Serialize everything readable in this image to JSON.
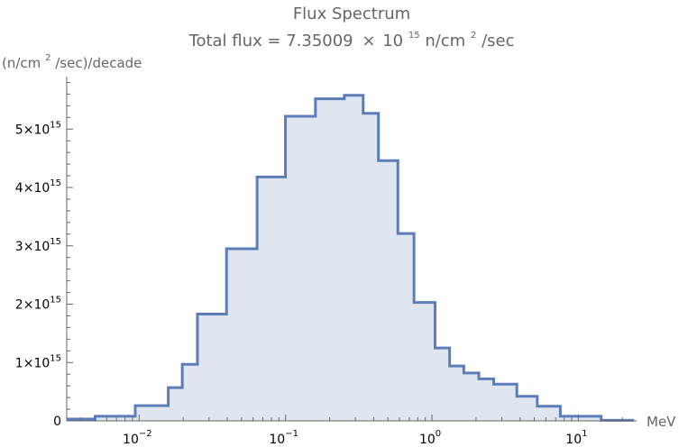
{
  "chart_data": {
    "type": "area",
    "title": "Flux Spectrum",
    "subtitle": {
      "prefix": "Total flux = 7.35009",
      "times": "×",
      "base": "10",
      "exponent": "15",
      "unit_prefix": " n/cm",
      "unit_exp": "2",
      "unit_suffix": "/sec"
    },
    "ylabel": {
      "prefix": "(n/cm",
      "exp": "2",
      "suffix": "/sec)/decade"
    },
    "xlabel": "MeV",
    "x_scale": "log",
    "xlim": [
      0.0032,
      25
    ],
    "ylim": [
      0,
      5900000000000000.0
    ],
    "x_ticks": [
      {
        "base": "10",
        "exp": "−2",
        "value": 0.01
      },
      {
        "base": "10",
        "exp": "−1",
        "value": 0.1
      },
      {
        "base": "10",
        "exp": "0",
        "value": 1
      },
      {
        "base": "10",
        "exp": "1",
        "value": 10
      }
    ],
    "y_ticks": [
      {
        "label": "0",
        "value": 0
      },
      {
        "mant": "1",
        "times": "×",
        "base": "10",
        "exp": "15",
        "value": 1000000000000000.0
      },
      {
        "mant": "2",
        "times": "×",
        "base": "10",
        "exp": "15",
        "value": 2000000000000000.0
      },
      {
        "mant": "3",
        "times": "×",
        "base": "10",
        "exp": "15",
        "value": 3000000000000000.0
      },
      {
        "mant": "4",
        "times": "×",
        "base": "10",
        "exp": "15",
        "value": 4000000000000000.0
      },
      {
        "mant": "5",
        "times": "×",
        "base": "10",
        "exp": "15",
        "value": 5000000000000000.0
      }
    ],
    "bins": [
      {
        "lo": 0.0032,
        "hi": 0.005,
        "value": 30000000000000.0
      },
      {
        "lo": 0.005,
        "hi": 0.0094,
        "value": 80000000000000.0
      },
      {
        "lo": 0.0094,
        "hi": 0.0158,
        "value": 260000000000000.0
      },
      {
        "lo": 0.0158,
        "hi": 0.0197,
        "value": 570000000000000.0
      },
      {
        "lo": 0.0197,
        "hi": 0.025,
        "value": 970000000000000.0
      },
      {
        "lo": 0.025,
        "hi": 0.0395,
        "value": 1830000000000000.0
      },
      {
        "lo": 0.0395,
        "hi": 0.0639,
        "value": 2950000000000000.0
      },
      {
        "lo": 0.0639,
        "hi": 0.0998,
        "value": 4180000000000000.0
      },
      {
        "lo": 0.0998,
        "hi": 0.16,
        "value": 5220000000000000.0
      },
      {
        "lo": 0.16,
        "hi": 0.252,
        "value": 5520000000000000.0
      },
      {
        "lo": 0.252,
        "hi": 0.339,
        "value": 5580000000000000.0
      },
      {
        "lo": 0.339,
        "hi": 0.431,
        "value": 5270000000000000.0
      },
      {
        "lo": 0.431,
        "hi": 0.585,
        "value": 4460000000000000.0
      },
      {
        "lo": 0.585,
        "hi": 0.754,
        "value": 3210000000000000.0
      },
      {
        "lo": 0.754,
        "hi": 1.05,
        "value": 2030000000000000.0
      },
      {
        "lo": 1.05,
        "hi": 1.32,
        "value": 1250000000000000.0
      },
      {
        "lo": 1.32,
        "hi": 1.65,
        "value": 940000000000000.0
      },
      {
        "lo": 1.65,
        "hi": 2.09,
        "value": 820000000000000.0
      },
      {
        "lo": 2.09,
        "hi": 2.64,
        "value": 720000000000000.0
      },
      {
        "lo": 2.64,
        "hi": 3.8,
        "value": 630000000000000.0
      },
      {
        "lo": 3.8,
        "hi": 5.24,
        "value": 420000000000000.0
      },
      {
        "lo": 5.24,
        "hi": 7.53,
        "value": 250000000000000.0
      },
      {
        "lo": 7.53,
        "hi": 14.3,
        "value": 80000000000000.0
      },
      {
        "lo": 14.3,
        "hi": 24.0,
        "value": 10000000000000.0
      }
    ],
    "colors": {
      "line": "#5B7DB8",
      "fill": "#E0E6F0",
      "axis": "#666666"
    },
    "grid": false,
    "legend": "none"
  }
}
